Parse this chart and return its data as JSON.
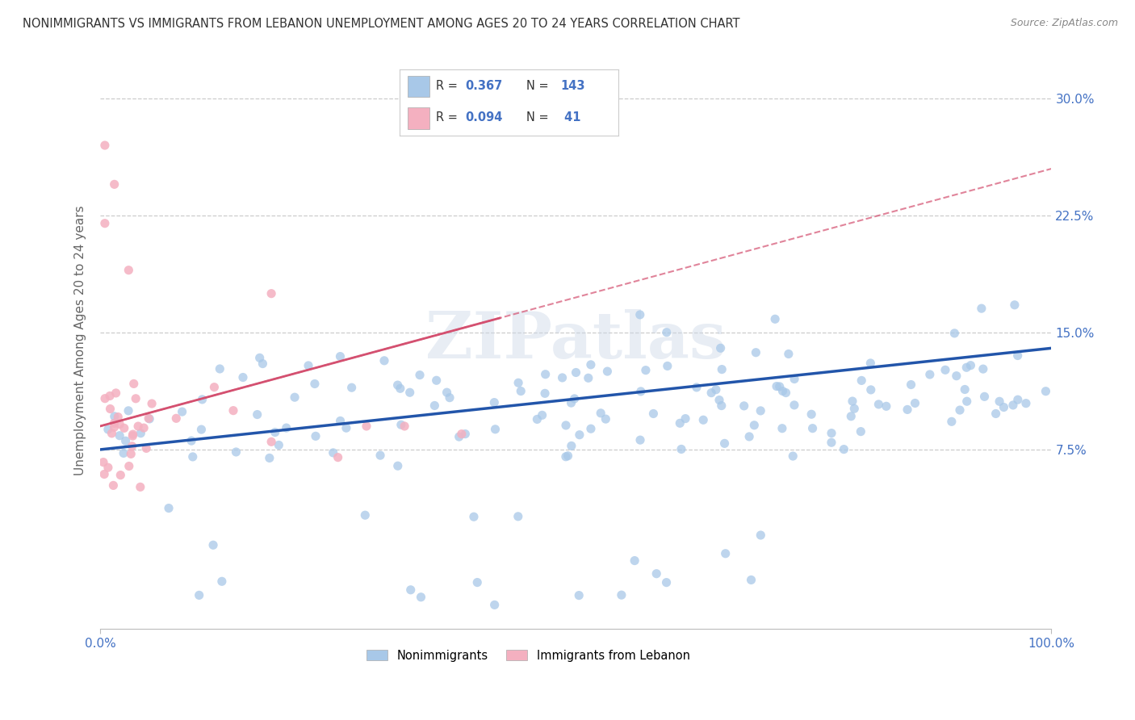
{
  "title": "NONIMMIGRANTS VS IMMIGRANTS FROM LEBANON UNEMPLOYMENT AMONG AGES 20 TO 24 YEARS CORRELATION CHART",
  "source": "Source: ZipAtlas.com",
  "ylabel_label": "Unemployment Among Ages 20 to 24 years",
  "legend_labels": [
    "Nonimmigrants",
    "Immigrants from Lebanon"
  ],
  "blue_color": "#a8c8e8",
  "pink_color": "#f4b0c0",
  "blue_line_color": "#2255aa",
  "pink_line_color": "#d45070",
  "tick_color": "#4472C4",
  "watermark": "ZIPatlas",
  "xlim": [
    0.0,
    1.0
  ],
  "ylim": [
    -0.04,
    0.33
  ],
  "blue_R": 0.367,
  "blue_N": 143,
  "pink_R": 0.094,
  "pink_N": 41,
  "yticks": [
    0.075,
    0.15,
    0.225,
    0.3
  ],
  "ytick_labels": [
    "7.5%",
    "15.0%",
    "22.5%",
    "30.0%"
  ],
  "xticks": [
    0.0,
    1.0
  ],
  "xtick_labels": [
    "0.0%",
    "100.0%"
  ],
  "blue_intercept": 0.075,
  "blue_slope": 0.065,
  "pink_intercept": 0.09,
  "pink_slope": 0.165
}
